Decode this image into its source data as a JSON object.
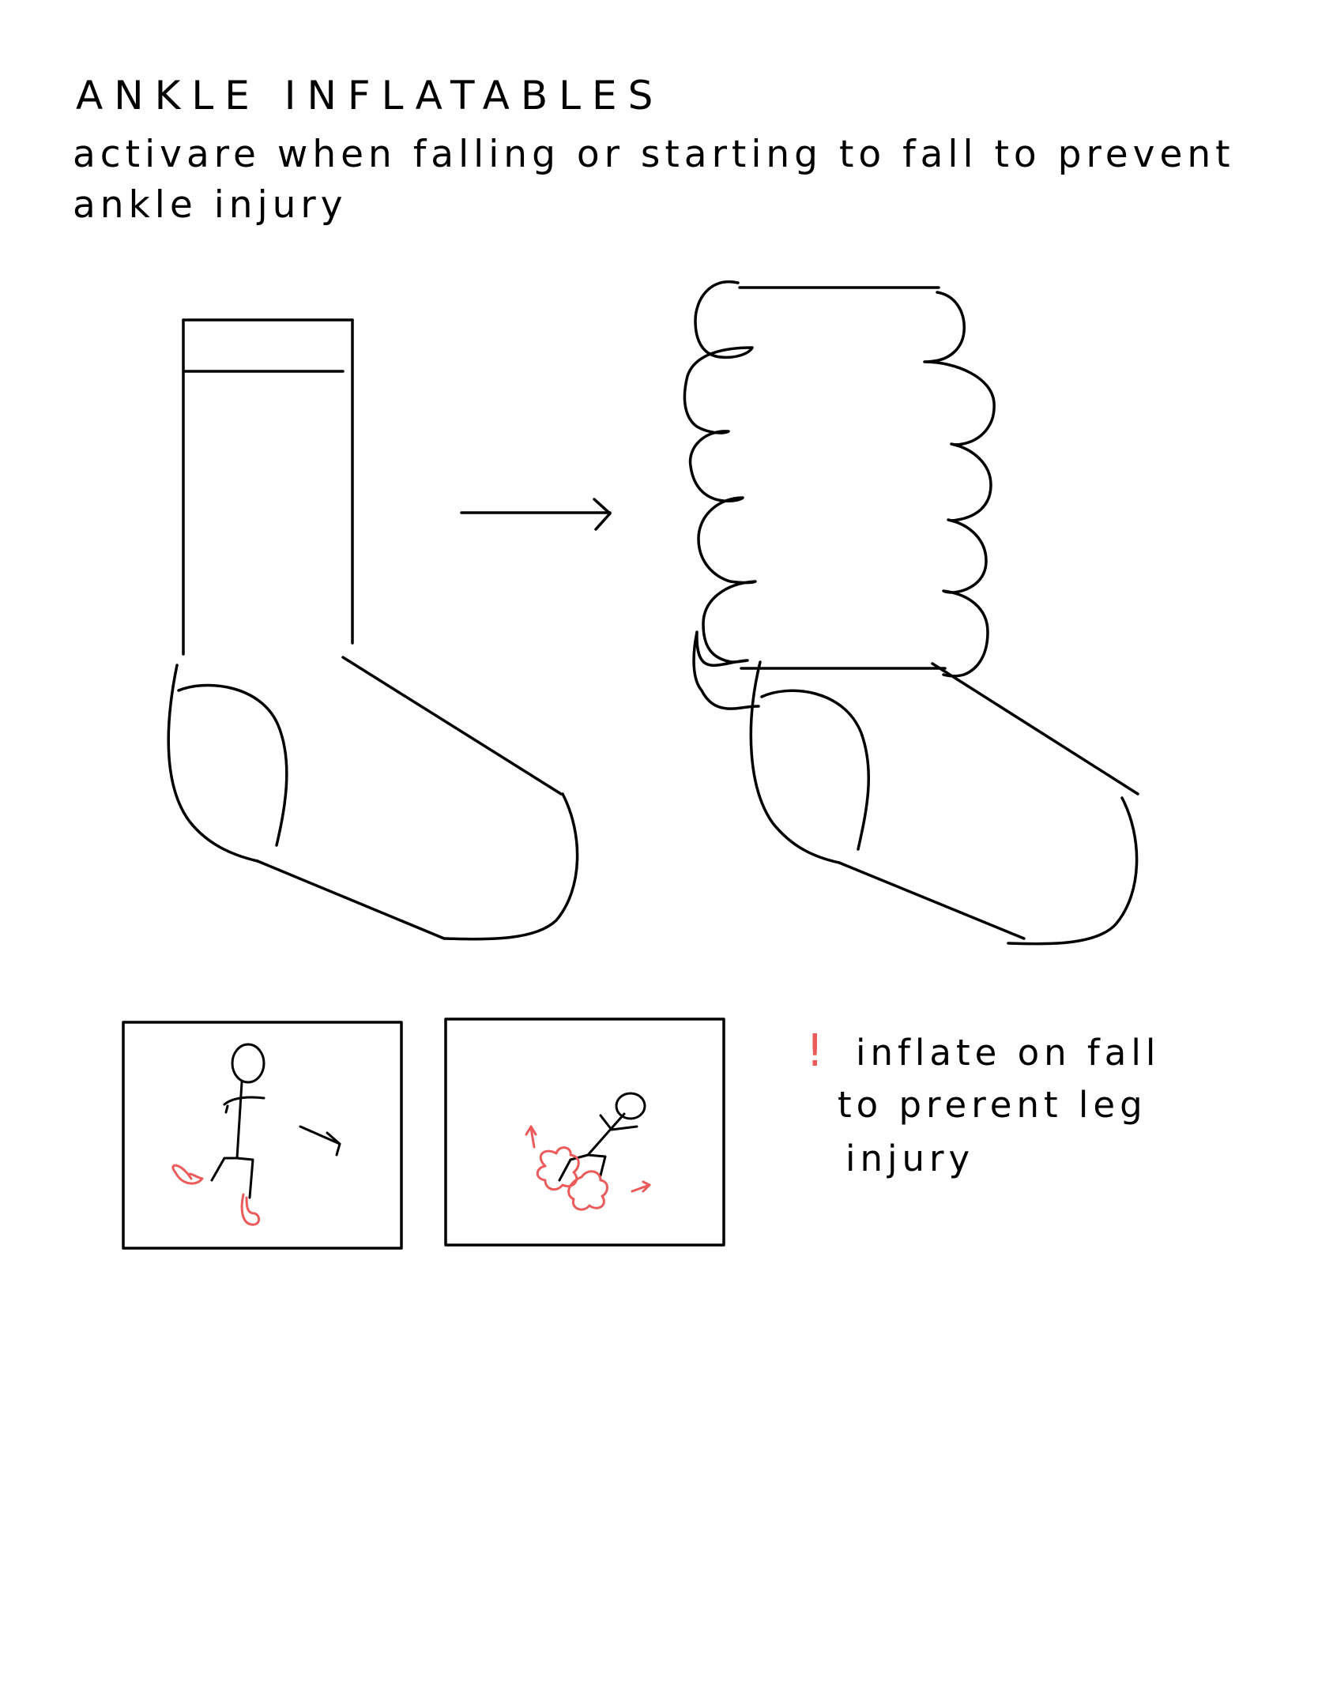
{
  "heading": {
    "title": "ANKLE INFLATABLES",
    "description_line1": "activare when falling or starting to fall to prevent",
    "description_line2": "ankle injury"
  },
  "note": {
    "marker": "!",
    "line1": "inflate on fall",
    "line2": "to prerent leg",
    "line3": "injury"
  },
  "colors": {
    "ink": "#000000",
    "accent_red": "#ec5b5b",
    "background": "#ffffff"
  }
}
